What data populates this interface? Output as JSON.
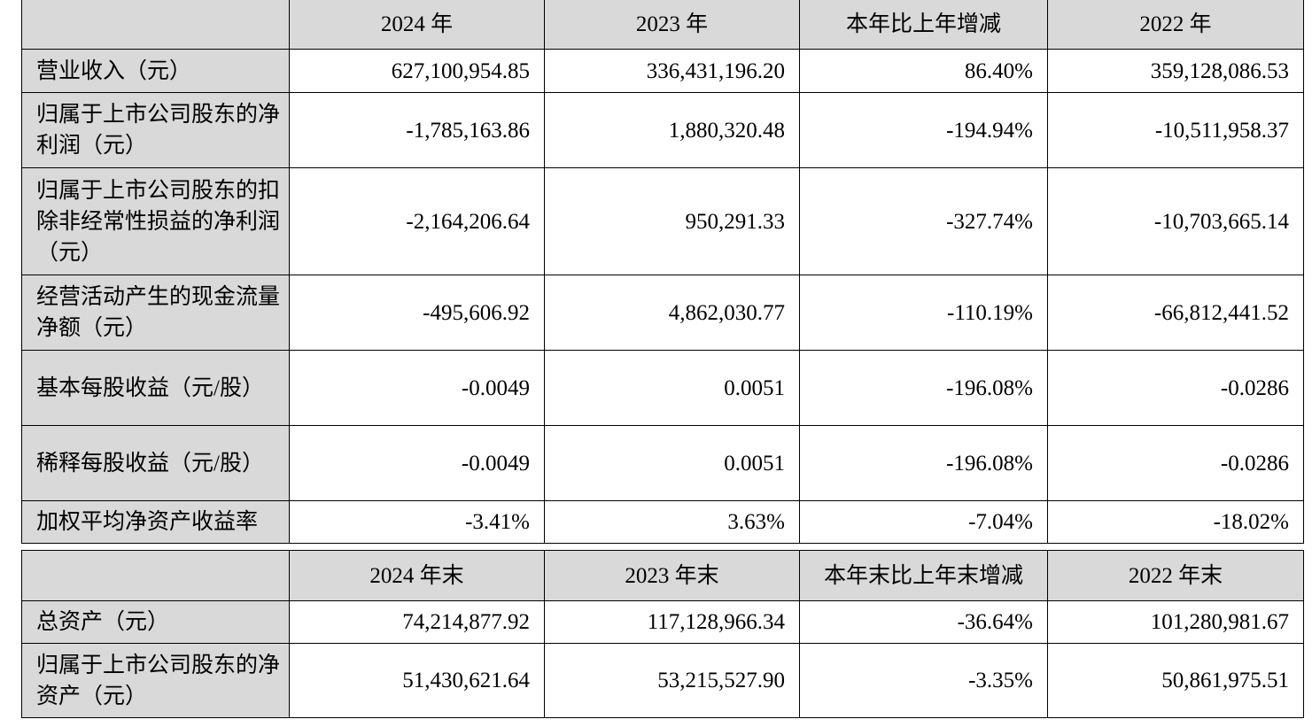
{
  "table1": {
    "headers": [
      "",
      "2024 年",
      "2023 年",
      "本年比上年增减",
      "2022 年"
    ],
    "rows": [
      {
        "label": "营业收入（元）",
        "values": [
          "627,100,954.85",
          "336,431,196.20",
          "86.40%",
          "359,128,086.53"
        ]
      },
      {
        "label": "归属于上市公司股东的净利润（元）",
        "values": [
          "-1,785,163.86",
          "1,880,320.48",
          "-194.94%",
          "-10,511,958.37"
        ]
      },
      {
        "label": "归属于上市公司股东的扣除非经常性损益的净利润（元）",
        "values": [
          "-2,164,206.64",
          "950,291.33",
          "-327.74%",
          "-10,703,665.14"
        ]
      },
      {
        "label": "经营活动产生的现金流量净额（元）",
        "values": [
          "-495,606.92",
          "4,862,030.77",
          "-110.19%",
          "-66,812,441.52"
        ]
      },
      {
        "label": "基本每股收益（元/股）",
        "values": [
          "-0.0049",
          "0.0051",
          "-196.08%",
          "-0.0286"
        ]
      },
      {
        "label": "稀释每股收益（元/股）",
        "values": [
          "-0.0049",
          "0.0051",
          "-196.08%",
          "-0.0286"
        ]
      },
      {
        "label": "加权平均净资产收益率",
        "values": [
          "-3.41%",
          "3.63%",
          "-7.04%",
          "-18.02%"
        ]
      }
    ]
  },
  "table2": {
    "headers": [
      "",
      "2024 年末",
      "2023 年末",
      "本年末比上年末增减",
      "2022 年末"
    ],
    "rows": [
      {
        "label": "总资产（元）",
        "values": [
          "74,214,877.92",
          "117,128,966.34",
          "-36.64%",
          "101,280,981.67"
        ]
      },
      {
        "label": "归属于上市公司股东的净资产（元）",
        "values": [
          "51,430,621.64",
          "53,215,527.90",
          "-3.35%",
          "50,861,975.51"
        ]
      }
    ]
  }
}
